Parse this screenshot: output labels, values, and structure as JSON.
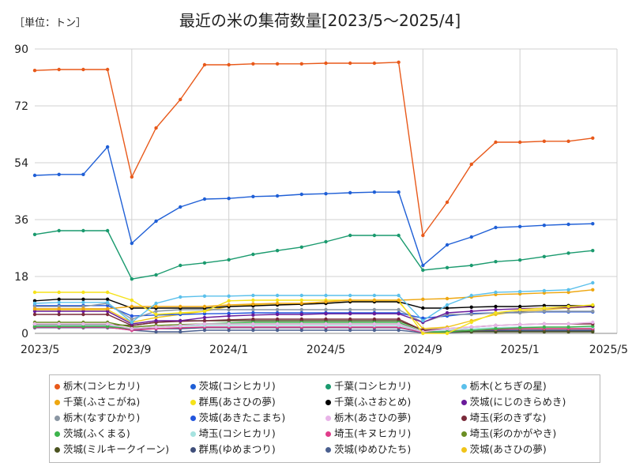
{
  "chart_data": {
    "type": "line",
    "unit_label": "［単位：トン］",
    "title": "最近の米の集荷数量[2023/5～2025/4]",
    "ylim": [
      0,
      90
    ],
    "yticks": [
      "0",
      "18",
      "36",
      "54",
      "72",
      "90"
    ],
    "xticks": [
      "2023/5",
      "2023/9",
      "2024/1",
      "2024/5",
      "2024/9",
      "2025/1",
      "2025/5"
    ],
    "x": [
      "2023/5",
      "2023/6",
      "2023/7",
      "2023/8",
      "2023/9",
      "2023/10",
      "2023/11",
      "2023/12",
      "2024/1",
      "2024/2",
      "2024/3",
      "2024/4",
      "2024/5",
      "2024/6",
      "2024/7",
      "2024/8",
      "2024/9",
      "2024/10",
      "2024/11",
      "2024/12",
      "2025/1",
      "2025/2",
      "2025/3",
      "2025/4"
    ],
    "grid": "vertical",
    "legend_position": "bottom",
    "series": [
      {
        "name": "栃木(コシヒカリ)",
        "color": "#e8591a",
        "values": [
          83.2,
          83.5,
          83.5,
          83.5,
          49.5,
          65,
          74,
          85,
          85,
          85.3,
          85.3,
          85.3,
          85.5,
          85.5,
          85.5,
          85.8,
          31,
          41.5,
          53.5,
          60.5,
          60.5,
          60.8,
          60.8,
          61.8
        ]
      },
      {
        "name": "茨城(コシヒカリ)",
        "color": "#1f5fd6",
        "values": [
          50,
          50.3,
          50.3,
          59,
          28.5,
          35.5,
          40,
          42.5,
          42.7,
          43.3,
          43.5,
          44,
          44.2,
          44.5,
          44.7,
          44.7,
          21.5,
          28,
          30.5,
          33.5,
          33.8,
          34.2,
          34.5,
          34.7
        ]
      },
      {
        "name": "千葉(コシヒカリ)",
        "color": "#1a9a6e",
        "values": [
          31.3,
          32.5,
          32.5,
          32.5,
          17.2,
          18.5,
          21.5,
          22.3,
          23.3,
          25,
          26.2,
          27.3,
          29,
          31,
          31,
          31,
          20,
          20.8,
          21.5,
          22.7,
          23.2,
          24.3,
          25.4,
          26.2
        ]
      },
      {
        "name": "栃木(とちぎの星)",
        "color": "#5bc0eb",
        "values": [
          9.5,
          9.8,
          9.8,
          9.8,
          3.5,
          9.5,
          11.5,
          11.8,
          11.8,
          12,
          12,
          12,
          12,
          12,
          12,
          12,
          4,
          9,
          12,
          13,
          13.2,
          13.5,
          13.8,
          16
        ]
      },
      {
        "name": "千葉(ふさこがね)",
        "color": "#eea711",
        "values": [
          7.8,
          7.8,
          7.8,
          7.8,
          8.5,
          8.5,
          8.5,
          8.5,
          9,
          9.3,
          9.5,
          9.5,
          10,
          10.5,
          10.5,
          10.5,
          10.8,
          11,
          11.5,
          12.3,
          12.5,
          12.8,
          13,
          13.8
        ]
      },
      {
        "name": "群馬(あさひの夢)",
        "color": "#f5e21a",
        "values": [
          13,
          13,
          13,
          13,
          10.5,
          6,
          6.5,
          7,
          10.3,
          10.5,
          10.5,
          10.5,
          10.5,
          10.5,
          10.5,
          10.5,
          0,
          0,
          3.5,
          6.5,
          7.5,
          8,
          8.5,
          9
        ]
      },
      {
        "name": "千葉(ふさおとめ)",
        "color": "#000000",
        "values": [
          10.3,
          10.8,
          10.8,
          10.8,
          8,
          8,
          8,
          8,
          8.5,
          8.7,
          9,
          9.2,
          9.5,
          10,
          10,
          10,
          8,
          8,
          8.3,
          8.5,
          8.5,
          8.8,
          8.8,
          8.8
        ]
      },
      {
        "name": "茨城(にじのきらめき)",
        "color": "#6a1b9a",
        "values": [
          7,
          7,
          7,
          7,
          3,
          4,
          4,
          5,
          5.5,
          5.8,
          6,
          6,
          6.2,
          6.2,
          6.2,
          6.2,
          3.5,
          6.5,
          7,
          7.5,
          7.8,
          8,
          8.2,
          8.5
        ]
      },
      {
        "name": "栃木(なすひかり)",
        "color": "#8a96a3",
        "values": [
          8.5,
          8.5,
          8.5,
          9.5,
          4.5,
          7,
          7.5,
          7.5,
          7.5,
          7.5,
          7.5,
          7.5,
          7.5,
          7.5,
          7.5,
          7.5,
          3.5,
          6,
          6,
          6.5,
          6.5,
          7,
          7,
          7
        ]
      },
      {
        "name": "茨城(あきたこまち)",
        "color": "#2255dd",
        "values": [
          8.8,
          8.8,
          8.8,
          8.8,
          5.5,
          5.8,
          6,
          6.2,
          6.3,
          6.5,
          6.5,
          6.5,
          6.5,
          6.5,
          6.5,
          6.5,
          4.8,
          5.5,
          6.3,
          6.5,
          6.7,
          6.8,
          6.8,
          6.8
        ]
      },
      {
        "name": "栃木(あさひの夢)",
        "color": "#e8b4e8",
        "values": [
          3,
          3,
          3,
          3,
          1.5,
          2,
          2.5,
          3,
          3,
          3,
          3,
          3,
          3,
          3,
          3,
          3,
          0.5,
          1.5,
          2,
          2.5,
          2.8,
          3,
          3,
          3.5
        ]
      },
      {
        "name": "埼玉(彩のきずな)",
        "color": "#7a2a3a",
        "values": [
          6,
          6,
          6,
          6,
          2.5,
          3.5,
          3.8,
          4,
          4.3,
          4.5,
          4.5,
          4.5,
          4.5,
          4.5,
          4.5,
          4.5,
          1,
          1.5,
          2,
          2.5,
          2.8,
          3,
          3,
          3
        ]
      },
      {
        "name": "茨城(ふくまる)",
        "color": "#3cb44b",
        "values": [
          2.2,
          2.2,
          2.2,
          2.2,
          1.5,
          2,
          2.5,
          3,
          3.3,
          3.5,
          3.5,
          3.5,
          3.5,
          3.5,
          3.5,
          3.5,
          0.5,
          0.5,
          1,
          1.5,
          1.8,
          2,
          2,
          2.3
        ]
      },
      {
        "name": "埼玉(コシヒカリ)",
        "color": "#a6e3e0",
        "values": [
          2.5,
          2.5,
          2.5,
          2.5,
          1.5,
          2,
          2.3,
          2.5,
          2.5,
          2.5,
          2.5,
          2.5,
          2.5,
          2.5,
          2.5,
          2.5,
          0.5,
          1,
          1.5,
          1.8,
          2,
          2,
          2,
          2
        ]
      },
      {
        "name": "埼玉(キヌヒカリ)",
        "color": "#e03c8a",
        "values": [
          2,
          2,
          2,
          2,
          1,
          1.5,
          1.8,
          2,
          2,
          2,
          2,
          2,
          2,
          2,
          2,
          2,
          0.3,
          0.8,
          1,
          1.3,
          1.5,
          1.5,
          1.5,
          1.5
        ]
      },
      {
        "name": "埼玉(彩のかがやき)",
        "color": "#6b8e23",
        "values": [
          3.5,
          3.5,
          3.5,
          3.5,
          2,
          2.5,
          2.8,
          3,
          3,
          3,
          3,
          3,
          3,
          3,
          3,
          3,
          0.5,
          0.8,
          1,
          1.3,
          1.5,
          1.5,
          1.5,
          1.5
        ]
      },
      {
        "name": "茨城(ミルキークイーン)",
        "color": "#4b5320",
        "values": [
          2.8,
          2.8,
          2.8,
          2.8,
          2.5,
          3.5,
          4,
          4,
          4,
          4,
          4,
          4,
          4,
          4,
          4,
          4,
          1,
          0.5,
          0.5,
          0.5,
          0.5,
          0.5,
          0.5,
          0.5
        ]
      },
      {
        "name": "群馬(ゆめまつり)",
        "color": "#3f4e7a",
        "values": [
          1.8,
          1.8,
          1.8,
          1.8,
          1.3,
          1.5,
          1.5,
          1.8,
          1.8,
          1.8,
          1.8,
          1.8,
          1.8,
          1.8,
          1.8,
          1.8,
          0.3,
          0.5,
          0.8,
          1,
          1,
          1,
          1,
          1
        ]
      },
      {
        "name": "茨城(ゆめひたち)",
        "color": "#4a5f8f",
        "values": [
          2,
          2,
          2,
          2,
          1,
          0.5,
          0.5,
          1,
          1,
          1,
          1,
          1,
          1,
          1,
          1,
          1,
          0.2,
          0.3,
          0.5,
          0.8,
          0.8,
          0.8,
          0.8,
          0.8
        ]
      },
      {
        "name": "茨城(あさひの夢)",
        "color": "#f0c419",
        "values": [
          7.5,
          7.5,
          7.5,
          7.5,
          3.5,
          5,
          6,
          7,
          8.5,
          9,
          9,
          9.3,
          9.5,
          10,
          10,
          10,
          1.5,
          2,
          4,
          6,
          7,
          7.5,
          8,
          8.5
        ]
      }
    ]
  }
}
